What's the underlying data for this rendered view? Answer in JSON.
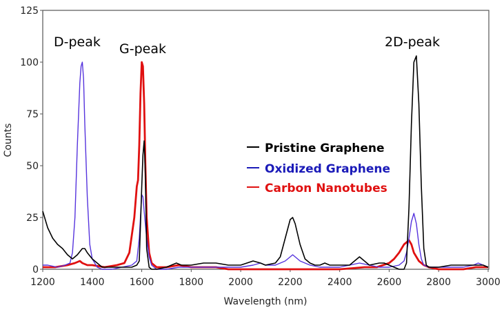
{
  "chart_data": {
    "type": "line",
    "title": "",
    "xlabel": "Wavelength (nm)",
    "ylabel": "Counts",
    "xlim": [
      1200,
      3000
    ],
    "ylim": [
      0,
      125
    ],
    "grid": false,
    "x_ticks": [
      1200,
      1400,
      1600,
      1800,
      2000,
      2200,
      2400,
      2600,
      2800,
      3000
    ],
    "y_ticks": [
      0,
      25,
      50,
      75,
      100,
      125
    ],
    "legend_position": "inside-center-right",
    "annotations": [
      {
        "text": "D-peak",
        "x": 1360,
        "y": 110
      },
      {
        "text": "G-peak",
        "x": 1600,
        "y": 107
      },
      {
        "text": "2D-peak",
        "x": 2700,
        "y": 110
      }
    ],
    "series": [
      {
        "name": "Pristine Graphene",
        "color": "#000000",
        "x": [
          1200,
          1220,
          1240,
          1260,
          1280,
          1300,
          1320,
          1340,
          1360,
          1370,
          1380,
          1400,
          1420,
          1440,
          1460,
          1500,
          1540,
          1560,
          1580,
          1590,
          1600,
          1605,
          1610,
          1615,
          1620,
          1630,
          1640,
          1660,
          1700,
          1720,
          1740,
          1760,
          1800,
          1850,
          1900,
          1950,
          2000,
          2050,
          2080,
          2100,
          2140,
          2160,
          2180,
          2200,
          2210,
          2220,
          2240,
          2260,
          2280,
          2300,
          2320,
          2340,
          2360,
          2400,
          2440,
          2460,
          2480,
          2500,
          2520,
          2560,
          2580,
          2600,
          2620,
          2640,
          2660,
          2670,
          2680,
          2690,
          2700,
          2710,
          2720,
          2730,
          2740,
          2750,
          2760,
          2800,
          2850,
          2900,
          2950,
          2980,
          3000
        ],
        "y": [
          28,
          20,
          15,
          12,
          10,
          7,
          5,
          7,
          10,
          10,
          8,
          5,
          3,
          1,
          1,
          1,
          1,
          1,
          2,
          4,
          40,
          55,
          62,
          45,
          10,
          1,
          0,
          0,
          1,
          2,
          3,
          2,
          2,
          3,
          3,
          2,
          2,
          4,
          3,
          2,
          3,
          6,
          15,
          24,
          25,
          22,
          12,
          5,
          3,
          2,
          2,
          3,
          2,
          2,
          2,
          4,
          6,
          4,
          2,
          3,
          3,
          2,
          1,
          0,
          0,
          3,
          30,
          70,
          100,
          103,
          80,
          40,
          10,
          2,
          1,
          1,
          2,
          2,
          2,
          2,
          1
        ]
      },
      {
        "name": "Oxidized Graphene",
        "color": "#5533dd",
        "x": [
          1200,
          1220,
          1260,
          1290,
          1310,
          1320,
          1330,
          1340,
          1350,
          1355,
          1360,
          1365,
          1370,
          1380,
          1390,
          1400,
          1420,
          1440,
          1480,
          1520,
          1560,
          1580,
          1590,
          1600,
          1605,
          1610,
          1620,
          1630,
          1640,
          1660,
          1700,
          1750,
          1800,
          1850,
          1900,
          1950,
          2000,
          2050,
          2080,
          2100,
          2140,
          2180,
          2200,
          2210,
          2220,
          2240,
          2280,
          2320,
          2400,
          2440,
          2480,
          2520,
          2560,
          2600,
          2640,
          2660,
          2670,
          2680,
          2690,
          2700,
          2710,
          2720,
          2730,
          2740,
          2760,
          2800,
          2850,
          2900,
          2940,
          2960,
          2980,
          3000
        ],
        "y": [
          2,
          2,
          1,
          2,
          3,
          8,
          25,
          60,
          90,
          98,
          100,
          92,
          70,
          35,
          12,
          5,
          1,
          0,
          0,
          1,
          2,
          4,
          15,
          36,
          35,
          28,
          15,
          6,
          2,
          0,
          0,
          1,
          1,
          1,
          1,
          1,
          1,
          2,
          3,
          2,
          2,
          4,
          6,
          7,
          6,
          4,
          2,
          1,
          1,
          2,
          3,
          2,
          1,
          1,
          2,
          4,
          8,
          15,
          23,
          27,
          22,
          12,
          5,
          2,
          1,
          1,
          1,
          1,
          2,
          3,
          2,
          1
        ]
      },
      {
        "name": "Carbon Nanotubes",
        "color": "#e01010",
        "x": [
          1200,
          1250,
          1300,
          1330,
          1350,
          1360,
          1380,
          1400,
          1450,
          1500,
          1530,
          1550,
          1570,
          1580,
          1585,
          1590,
          1595,
          1600,
          1605,
          1610,
          1615,
          1620,
          1630,
          1640,
          1660,
          1700,
          1750,
          1800,
          1850,
          1900,
          1950,
          2000,
          2100,
          2200,
          2300,
          2400,
          2500,
          2550,
          2600,
          2620,
          2640,
          2660,
          2670,
          2680,
          2690,
          2700,
          2720,
          2740,
          2760,
          2800,
          2850,
          2900,
          2950,
          3000
        ],
        "y": [
          1,
          1,
          2,
          3,
          4,
          3,
          2,
          2,
          1,
          2,
          3,
          8,
          25,
          40,
          43,
          60,
          85,
          100,
          98,
          80,
          50,
          25,
          8,
          3,
          1,
          1,
          2,
          1,
          1,
          1,
          0,
          0,
          0,
          0,
          0,
          0,
          1,
          1,
          3,
          5,
          8,
          12,
          13,
          14,
          12,
          8,
          4,
          2,
          1,
          0,
          0,
          0,
          1,
          1
        ]
      }
    ]
  },
  "legend": {
    "items": [
      {
        "label": "Pristine Graphene",
        "color": "#000000"
      },
      {
        "label": "Oxidized Graphene",
        "color": "#1a1ab8"
      },
      {
        "label": "Carbon Nanotubes",
        "color": "#e01010"
      }
    ]
  },
  "labels": {
    "d_peak": "D-peak",
    "g_peak": "G-peak",
    "two_d_peak": "2D-peak",
    "xlabel": "Wavelength (nm)",
    "ylabel": "Counts"
  }
}
